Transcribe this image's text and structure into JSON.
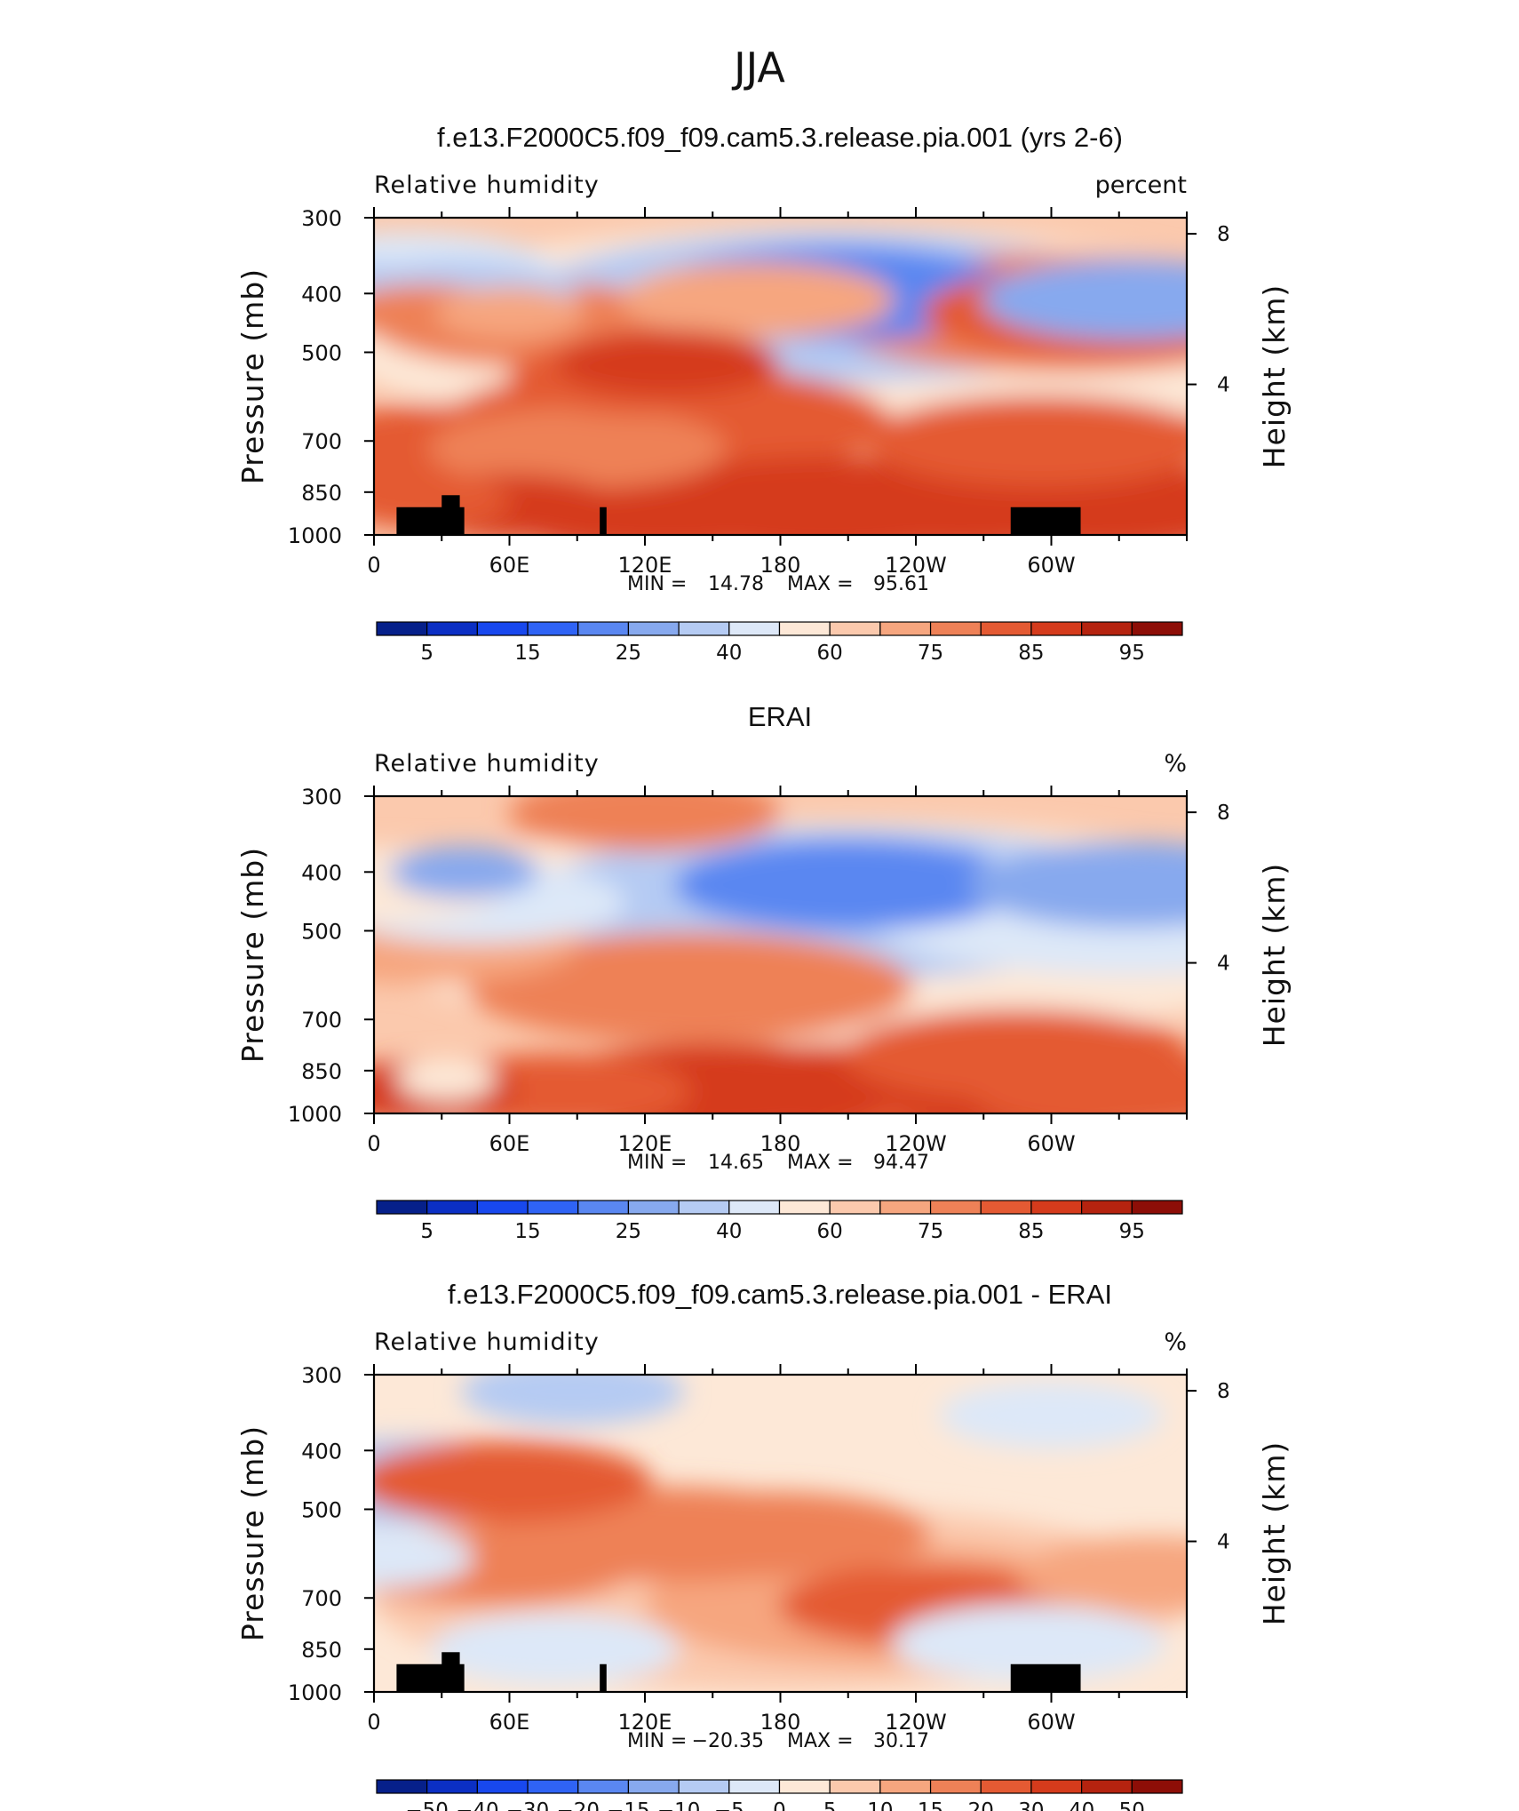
{
  "title": "JJA",
  "chart_data": [
    {
      "type": "heatmap",
      "title": "f.e13.F2000C5.f09_f09.cam5.3.release.pia.001 (yrs 2-6)",
      "left_label": "Relative humidity",
      "units": "percent",
      "ylabel": "Pressure (mb)",
      "ylabel_right": "Height (km)",
      "y_ticks": [
        "300",
        "400",
        "500",
        "700",
        "850",
        "1000"
      ],
      "y_right_ticks": [
        "8",
        "4"
      ],
      "x_ticks": [
        "0",
        "60E",
        "120E",
        "180",
        "120W",
        "60W"
      ],
      "stats": {
        "min_label": "MIN =",
        "min": "14.78",
        "max_label": "MAX =",
        "max": "95.61"
      },
      "colorbar_labels": [
        "5",
        "15",
        "25",
        "40",
        "60",
        "75",
        "85",
        "95"
      ],
      "colorbar_colors": [
        "#06208a",
        "#0b2fc4",
        "#1848ee",
        "#2f63f5",
        "#5a87f1",
        "#87a9ee",
        "#b5cbf3",
        "#dde8f8",
        "#fde8d7",
        "#fbc9ad",
        "#f6a67f",
        "#ee8157",
        "#e45a33",
        "#d53b1c",
        "#b5230f",
        "#8d0e07"
      ],
      "mask": true,
      "features": [
        {
          "x": 22,
          "y": 430,
          "r": 70,
          "c": 2
        },
        {
          "x": 60,
          "y": 430,
          "r": 60,
          "c": 1
        },
        {
          "x": 170,
          "y": 410,
          "r": 110,
          "c": 1
        },
        {
          "x": 305,
          "y": 430,
          "r": 200,
          "c": 2
        },
        {
          "x": 320,
          "y": 430,
          "r": 140,
          "c": 3
        },
        {
          "x": 22,
          "y": 880,
          "r": 70,
          "c": 3
        },
        {
          "x": 60,
          "y": 900,
          "r": 90,
          "c": 4
        },
        {
          "x": 130,
          "y": 900,
          "r": 150,
          "c": 4
        },
        {
          "x": 200,
          "y": 900,
          "r": 160,
          "c": 4
        },
        {
          "x": 260,
          "y": 900,
          "r": 140,
          "c": 4
        },
        {
          "x": 320,
          "y": 900,
          "r": 140,
          "c": 4
        },
        {
          "x": 120,
          "y": 550,
          "r": 110,
          "c": 3
        },
        {
          "x": 130,
          "y": 650,
          "r": 180,
          "c": 3
        },
        {
          "x": 130,
          "y": 520,
          "r": 90,
          "c": 4
        },
        {
          "x": 40,
          "y": 720,
          "r": 140,
          "c": 3
        },
        {
          "x": 90,
          "y": 720,
          "r": 120,
          "c": 2
        },
        {
          "x": 70,
          "y": 450,
          "r": 130,
          "c": 2
        },
        {
          "x": 0,
          "y": 400,
          "r": 80,
          "c": -3
        },
        {
          "x": 15,
          "y": 370,
          "r": 120,
          "c": -2
        },
        {
          "x": 37,
          "y": 400,
          "r": 95,
          "c": -3
        },
        {
          "x": 205,
          "y": 400,
          "r": 150,
          "c": -5
        },
        {
          "x": 205,
          "y": 420,
          "r": 260,
          "c": -3
        },
        {
          "x": 200,
          "y": 470,
          "r": 400,
          "c": -1
        },
        {
          "x": 335,
          "y": 410,
          "r": 120,
          "c": -4
        },
        {
          "x": 295,
          "y": 700,
          "r": 140,
          "c": 3
        }
      ]
    },
    {
      "type": "heatmap",
      "title": "ERAI",
      "left_label": "Relative humidity",
      "units": "%",
      "ylabel": "Pressure (mb)",
      "ylabel_right": "Height (km)",
      "y_ticks": [
        "300",
        "400",
        "500",
        "700",
        "850",
        "1000"
      ],
      "y_right_ticks": [
        "8",
        "4"
      ],
      "x_ticks": [
        "0",
        "60E",
        "120E",
        "180",
        "120W",
        "60W"
      ],
      "stats": {
        "min_label": "MIN =",
        "min": "14.65",
        "max_label": "MAX =",
        "max": "94.47"
      },
      "colorbar_labels": [
        "5",
        "15",
        "25",
        "40",
        "60",
        "75",
        "85",
        "95"
      ],
      "colorbar_colors": [
        "#06208a",
        "#0b2fc4",
        "#1848ee",
        "#2f63f5",
        "#5a87f1",
        "#87a9ee",
        "#b5cbf3",
        "#dde8f8",
        "#fde8d7",
        "#fbc9ad",
        "#f6a67f",
        "#ee8157",
        "#e45a33",
        "#d53b1c",
        "#b5230f",
        "#8d0e07"
      ],
      "mask": false,
      "features": [
        {
          "x": 20,
          "y": 920,
          "r": 80,
          "c": 4
        },
        {
          "x": 80,
          "y": 920,
          "r": 110,
          "c": 3
        },
        {
          "x": 150,
          "y": 920,
          "r": 150,
          "c": 4
        },
        {
          "x": 230,
          "y": 920,
          "r": 160,
          "c": 3
        },
        {
          "x": 300,
          "y": 920,
          "r": 140,
          "c": 4
        },
        {
          "x": 330,
          "y": 920,
          "r": 120,
          "c": 3
        },
        {
          "x": 140,
          "y": 620,
          "r": 180,
          "c": 2
        },
        {
          "x": 120,
          "y": 320,
          "r": 110,
          "c": 2
        },
        {
          "x": 20,
          "y": 520,
          "r": 130,
          "c": 1
        },
        {
          "x": 40,
          "y": 400,
          "r": 60,
          "c": -4
        },
        {
          "x": 45,
          "y": 450,
          "r": 120,
          "c": -2
        },
        {
          "x": 0,
          "y": 420,
          "r": 110,
          "c": -1
        },
        {
          "x": 210,
          "y": 420,
          "r": 140,
          "c": -5
        },
        {
          "x": 210,
          "y": 450,
          "r": 260,
          "c": -3
        },
        {
          "x": 210,
          "y": 500,
          "r": 400,
          "c": -1
        },
        {
          "x": 335,
          "y": 420,
          "r": 130,
          "c": -4
        },
        {
          "x": 335,
          "y": 460,
          "r": 220,
          "c": -2
        },
        {
          "x": 285,
          "y": 800,
          "r": 140,
          "c": 3
        },
        {
          "x": 32,
          "y": 880,
          "r": 40,
          "c": -1
        }
      ]
    },
    {
      "type": "heatmap",
      "title": "f.e13.F2000C5.f09_f09.cam5.3.release.pia.001 - ERAI",
      "left_label": "Relative humidity",
      "units": "%",
      "ylabel": "Pressure (mb)",
      "ylabel_right": "Height (km)",
      "y_ticks": [
        "300",
        "400",
        "500",
        "700",
        "850",
        "1000"
      ],
      "y_right_ticks": [
        "8",
        "4"
      ],
      "x_ticks": [
        "0",
        "60E",
        "120E",
        "180",
        "120W",
        "60W"
      ],
      "stats": {
        "min_label": "MIN =",
        "min": "−20.35",
        "max_label": "MAX =",
        "max": "30.17"
      },
      "colorbar_labels": [
        "−50",
        "−40",
        "−30",
        "−20",
        "−15",
        "−10",
        "−5",
        "0",
        "5",
        "10",
        "15",
        "20",
        "30",
        "40",
        "50"
      ],
      "colorbar_colors": [
        "#06208a",
        "#0b2fc4",
        "#1848ee",
        "#2f63f5",
        "#5a87f1",
        "#87a9ee",
        "#b5cbf3",
        "#dde8f8",
        "#fde8d7",
        "#fbc9ad",
        "#f6a67f",
        "#ee8157",
        "#e45a33",
        "#d53b1c",
        "#b5230f",
        "#8d0e07"
      ],
      "mask": true,
      "features": [
        {
          "x": 57,
          "y": 450,
          "r": 120,
          "c": 4
        },
        {
          "x": 50,
          "y": 620,
          "r": 120,
          "c": 3
        },
        {
          "x": 130,
          "y": 550,
          "r": 150,
          "c": 3
        },
        {
          "x": 175,
          "y": 550,
          "r": 130,
          "c": 3
        },
        {
          "x": 245,
          "y": 720,
          "r": 120,
          "c": 4
        },
        {
          "x": 230,
          "y": 720,
          "r": 200,
          "c": 2
        },
        {
          "x": 180,
          "y": 700,
          "r": 330,
          "c": 1
        },
        {
          "x": 345,
          "y": 640,
          "r": 110,
          "c": 2
        },
        {
          "x": 15,
          "y": 450,
          "r": 130,
          "c": -2
        },
        {
          "x": 88,
          "y": 320,
          "r": 90,
          "c": -2
        },
        {
          "x": 80,
          "y": 850,
          "r": 100,
          "c": -1
        },
        {
          "x": 300,
          "y": 350,
          "r": 90,
          "c": -1
        },
        {
          "x": 290,
          "y": 830,
          "r": 110,
          "c": -1
        },
        {
          "x": 0,
          "y": 600,
          "r": 80,
          "c": -1
        }
      ]
    }
  ]
}
